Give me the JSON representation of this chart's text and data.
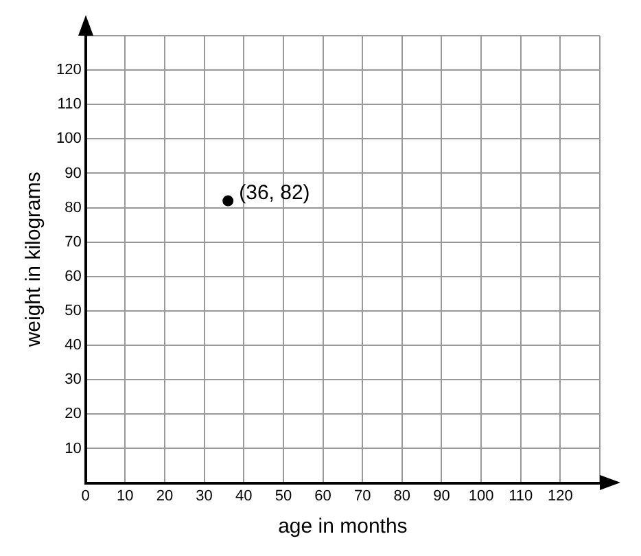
{
  "chart_data": {
    "type": "scatter",
    "xlabel": "age in months",
    "ylabel": "weight in kilograms",
    "x": [
      36
    ],
    "values": [
      82
    ],
    "color": "#000000",
    "marker": "circle",
    "xlim": [
      0,
      130
    ],
    "ylim": [
      0,
      130
    ],
    "xticks": [
      0,
      10,
      20,
      30,
      40,
      50,
      60,
      70,
      80,
      90,
      100,
      110,
      120,
      {
        "value": 130,
        "label": null
      }
    ],
    "yticks": [
      {
        "value": 0,
        "label": null
      },
      10,
      20,
      30,
      40,
      50,
      60,
      70,
      80,
      90,
      100,
      110,
      120,
      {
        "value": 130,
        "label": null
      }
    ],
    "grid": true,
    "legend": false,
    "annotations": [
      {
        "text": "(36, 82)",
        "x": 36,
        "y": 82
      }
    ]
  }
}
